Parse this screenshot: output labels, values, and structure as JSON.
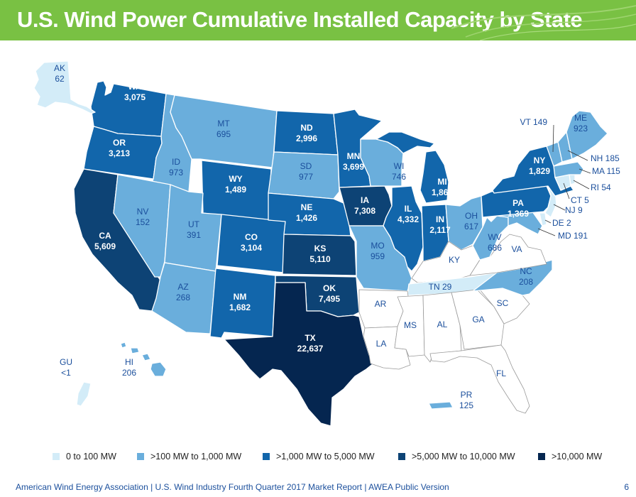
{
  "title": "U.S. Wind Power Cumulative Installed Capacity by State",
  "colors": {
    "title_bar": "#79c143",
    "tier_0": "#d3ecf8",
    "tier_1": "#6aaedc",
    "tier_2": "#1266ab",
    "tier_3": "#0d4375",
    "tier_4": "#052650",
    "no_data": "#ffffff",
    "label_dark": "#1b4f9c"
  },
  "legend": [
    {
      "label": "0 to 100 MW",
      "color": "#d3ecf8"
    },
    {
      "label": ">100 MW to 1,000 MW",
      "color": "#6aaedc"
    },
    {
      "label": ">1,000 MW to 5,000 MW",
      "color": "#1266ab"
    },
    {
      "label": ">5,000 MW to 10,000 MW",
      "color": "#0d4375"
    },
    {
      "label": ">10,000 MW",
      "color": "#052650"
    }
  ],
  "states": {
    "AK": {
      "abbr": "AK",
      "value": "62",
      "tier": 0
    },
    "WA": {
      "abbr": "WA",
      "value": "3,075",
      "tier": 2
    },
    "OR": {
      "abbr": "OR",
      "value": "3,213",
      "tier": 2
    },
    "CA": {
      "abbr": "CA",
      "value": "5,609",
      "tier": 3
    },
    "ID": {
      "abbr": "ID",
      "value": "973",
      "tier": 1
    },
    "NV": {
      "abbr": "NV",
      "value": "152",
      "tier": 1
    },
    "MT": {
      "abbr": "MT",
      "value": "695",
      "tier": 1
    },
    "WY": {
      "abbr": "WY",
      "value": "1,489",
      "tier": 2
    },
    "UT": {
      "abbr": "UT",
      "value": "391",
      "tier": 1
    },
    "AZ": {
      "abbr": "AZ",
      "value": "268",
      "tier": 1
    },
    "CO": {
      "abbr": "CO",
      "value": "3,104",
      "tier": 2
    },
    "NM": {
      "abbr": "NM",
      "value": "1,682",
      "tier": 2
    },
    "ND": {
      "abbr": "ND",
      "value": "2,996",
      "tier": 2
    },
    "SD": {
      "abbr": "SD",
      "value": "977",
      "tier": 1
    },
    "NE": {
      "abbr": "NE",
      "value": "1,426",
      "tier": 2
    },
    "KS": {
      "abbr": "KS",
      "value": "5,110",
      "tier": 3
    },
    "OK": {
      "abbr": "OK",
      "value": "7,495",
      "tier": 3
    },
    "TX": {
      "abbr": "TX",
      "value": "22,637",
      "tier": 4
    },
    "MN": {
      "abbr": "MN",
      "value": "3,699",
      "tier": 2
    },
    "IA": {
      "abbr": "IA",
      "value": "7,308",
      "tier": 3
    },
    "MO": {
      "abbr": "MO",
      "value": "959",
      "tier": 1
    },
    "WI": {
      "abbr": "WI",
      "value": "746",
      "tier": 1
    },
    "IL": {
      "abbr": "IL",
      "value": "4,332",
      "tier": 2
    },
    "MI": {
      "abbr": "MI",
      "value": "1,860",
      "tier": 2
    },
    "IN": {
      "abbr": "IN",
      "value": "2,117",
      "tier": 2
    },
    "OH": {
      "abbr": "OH",
      "value": "617",
      "tier": 1
    },
    "WV": {
      "abbr": "WV",
      "value": "686",
      "tier": 1
    },
    "PA": {
      "abbr": "PA",
      "value": "1,369",
      "tier": 2
    },
    "NY": {
      "abbr": "NY",
      "value": "1,829",
      "tier": 2
    },
    "VT": {
      "abbr": "VT",
      "value": "149",
      "tier": 1
    },
    "ME": {
      "abbr": "ME",
      "value": "923",
      "tier": 1
    },
    "NH": {
      "abbr": "NH",
      "value": "185",
      "tier": 1
    },
    "MA": {
      "abbr": "MA",
      "value": "115",
      "tier": 1
    },
    "RI": {
      "abbr": "RI",
      "value": "54",
      "tier": 0
    },
    "CT": {
      "abbr": "CT",
      "value": "5",
      "tier": 0
    },
    "NJ": {
      "abbr": "NJ",
      "value": "9",
      "tier": 0
    },
    "DE": {
      "abbr": "DE",
      "value": "2",
      "tier": 0
    },
    "MD": {
      "abbr": "MD",
      "value": "191",
      "tier": 1
    },
    "NC": {
      "abbr": "NC",
      "value": "208",
      "tier": 1
    },
    "TN": {
      "abbr": "TN",
      "value": "29",
      "tier": 0
    },
    "HI": {
      "abbr": "HI",
      "value": "206",
      "tier": 1
    },
    "GU": {
      "abbr": "GU",
      "value": "<1",
      "tier": 0
    },
    "PR": {
      "abbr": "PR",
      "value": "125",
      "tier": 1
    },
    "VA": {
      "abbr": "VA"
    },
    "KY": {
      "abbr": "KY"
    },
    "AR": {
      "abbr": "AR"
    },
    "LA": {
      "abbr": "LA"
    },
    "MS": {
      "abbr": "MS"
    },
    "AL": {
      "abbr": "AL"
    },
    "GA": {
      "abbr": "GA"
    },
    "SC": {
      "abbr": "SC"
    },
    "FL": {
      "abbr": "FL"
    }
  },
  "footer": {
    "source": "American Wind Energy Association  |  U.S. Wind Industry Fourth Quarter 2017 Market Report  |  AWEA Public Version",
    "page_number": "6"
  }
}
